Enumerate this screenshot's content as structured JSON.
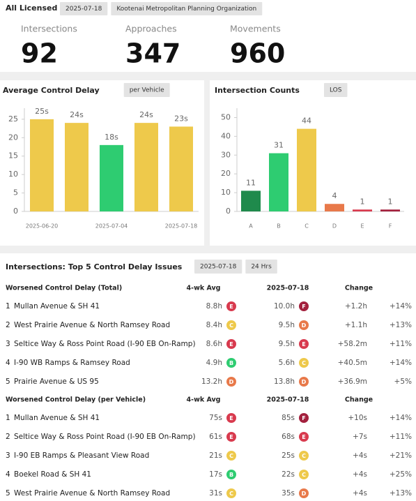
{
  "header": {
    "title": "All Licensed",
    "badges": [
      "2025-07-18",
      "Kootenai Metropolitan Planning Organization"
    ]
  },
  "kpis": [
    {
      "label": "Intersections",
      "value": 92
    },
    {
      "label": "Approaches",
      "value": 347
    },
    {
      "label": "Movements",
      "value": 960
    }
  ],
  "chart_data": [
    {
      "type": "bar",
      "title": "Average Control Delay",
      "subtitle": "per Vehicle",
      "categories": [
        "2025-06-20",
        null,
        "2025-07-04",
        null,
        "2025-07-18"
      ],
      "values": [
        25,
        24,
        18,
        24,
        23
      ],
      "value_labels": [
        "25s",
        "24s",
        "18s",
        "24s",
        "23s"
      ],
      "colors": [
        "#eec94b",
        "#eec94b",
        "#2ecc71",
        "#eec94b",
        "#eec94b"
      ],
      "ylim": [
        0,
        28
      ],
      "yticks": [
        0,
        5,
        10,
        15,
        20,
        25
      ]
    },
    {
      "type": "bar",
      "title": "Intersection Counts",
      "subtitle": "LOS",
      "categories": [
        "A",
        "B",
        "C",
        "D",
        "E",
        "F"
      ],
      "values": [
        11,
        31,
        44,
        4,
        1,
        1
      ],
      "colors": [
        "#1f8a4c",
        "#2ecc71",
        "#eec94b",
        "#e8794a",
        "#d83a4e",
        "#a3203d"
      ],
      "ylim": [
        0,
        55
      ],
      "yticks": [
        0,
        10,
        20,
        30,
        40,
        50
      ]
    }
  ],
  "table": {
    "title": "Intersections: Top 5 Control Delay Issues",
    "badges": [
      "2025-07-18",
      "24 Hrs"
    ],
    "sections": [
      {
        "headers": [
          "Worsened Control Delay (Total)",
          "4-wk Avg",
          "2025-07-18",
          "Change"
        ],
        "rows": [
          [
            1,
            "Mullan Avenue & SH 41",
            "8.8h",
            "E",
            "10.0h",
            "F",
            "+1.2h",
            "+14%"
          ],
          [
            2,
            "West Prairie Avenue & North Ramsey Road",
            "8.4h",
            "C",
            "9.5h",
            "D",
            "+1.1h",
            "+13%"
          ],
          [
            3,
            "Seltice Way & Ross Point Road (I-90 EB On-Ramp)",
            "8.6h",
            "E",
            "9.5h",
            "E",
            "+58.2m",
            "+11%"
          ],
          [
            4,
            "I-90 WB Ramps & Ramsey Road",
            "4.9h",
            "B",
            "5.6h",
            "C",
            "+40.5m",
            "+14%"
          ],
          [
            5,
            "Prairie Avenue & US 95",
            "13.2h",
            "D",
            "13.8h",
            "D",
            "+36.9m",
            "+5%"
          ]
        ]
      },
      {
        "headers": [
          "Worsened Control Delay (per Vehicle)",
          "4-wk Avg",
          "2025-07-18",
          "Change"
        ],
        "rows": [
          [
            1,
            "Mullan Avenue & SH 41",
            "75s",
            "E",
            "85s",
            "F",
            "+10s",
            "+14%"
          ],
          [
            2,
            "Seltice Way & Ross Point Road (I-90 EB On-Ramp)",
            "61s",
            "E",
            "68s",
            "E",
            "+7s",
            "+11%"
          ],
          [
            3,
            "I-90 EB Ramps & Pleasant View Road",
            "21s",
            "C",
            "25s",
            "C",
            "+4s",
            "+21%"
          ],
          [
            4,
            "Boekel Road & SH 41",
            "17s",
            "B",
            "22s",
            "C",
            "+4s",
            "+25%"
          ],
          [
            5,
            "West Prairie Avenue & North Ramsey Road",
            "31s",
            "C",
            "35s",
            "D",
            "+4s",
            "+13%"
          ]
        ]
      }
    ]
  }
}
